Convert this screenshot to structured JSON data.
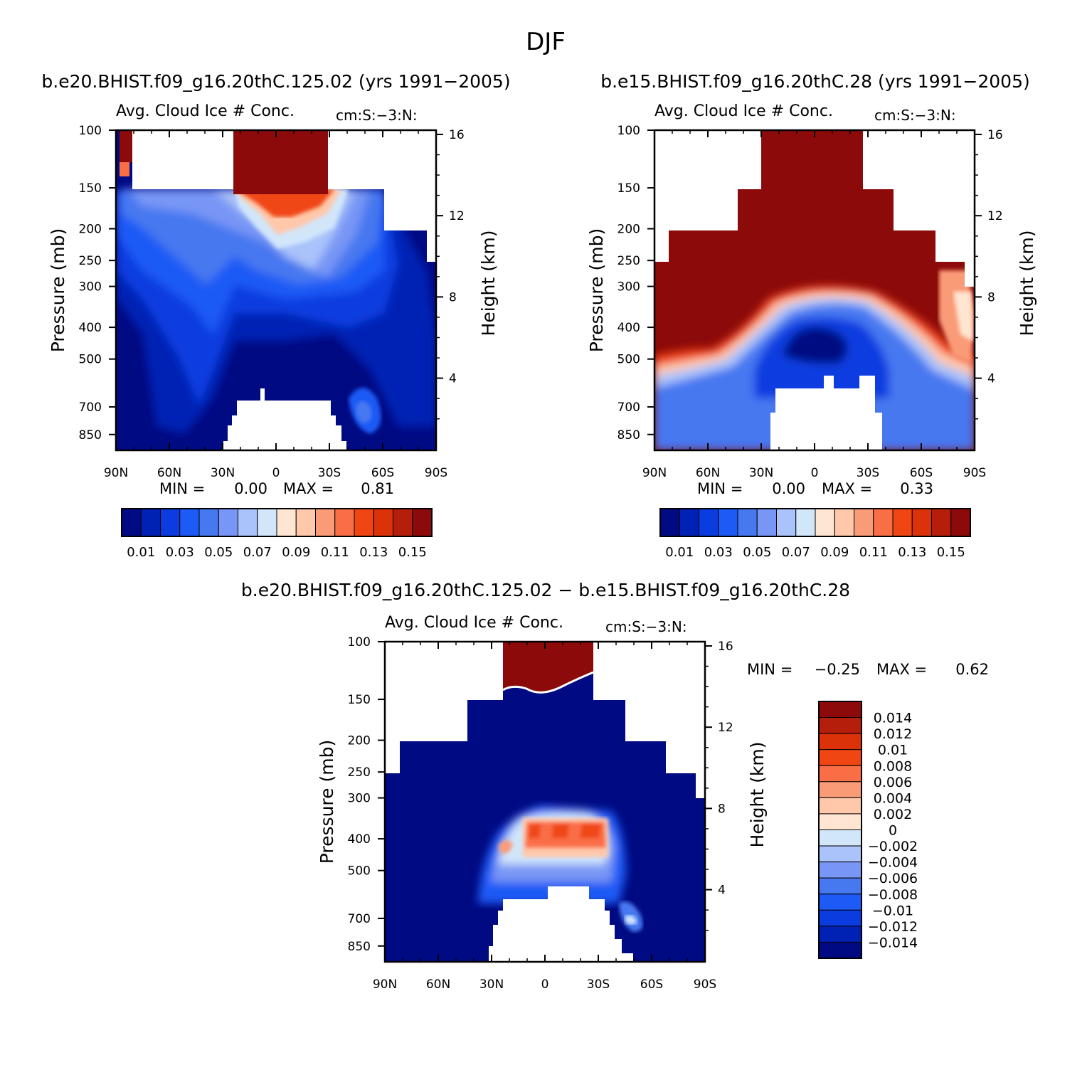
{
  "figure_title": "DJF",
  "colors": {
    "seq": [
      "#000a82",
      "#0022b4",
      "#0a3ce0",
      "#1e5af5",
      "#4678f0",
      "#7896f5",
      "#aac3fa",
      "#d2e6fa",
      "#ffe6d2",
      "#ffc8aa",
      "#fa9b78",
      "#fa6e46",
      "#f04614",
      "#dc320a",
      "#b41e0a",
      "#8c0a0a"
    ],
    "diff": [
      "#000a82",
      "#0022b4",
      "#0a3ce0",
      "#1e5af5",
      "#4678f0",
      "#7896f5",
      "#aac3fa",
      "#d2e6fa",
      "#ffe6d2",
      "#ffc8aa",
      "#fa9b78",
      "#fa6e46",
      "#f04614",
      "#dc320a",
      "#b41e0a",
      "#8c0a0a"
    ]
  },
  "chart_data": [
    {
      "type": "heatmap",
      "case_title": "b.e20.BHIST.f09_g16.20thC.125.02 (yrs 1991−2005)",
      "var_title": "Avg. Cloud Ice # Conc.",
      "units": "cm:S:−3:N:",
      "ylabel": "Pressure (mb)",
      "y2label": "Height (km)",
      "xticks": [
        "90N",
        "60N",
        "30N",
        "0",
        "30S",
        "60S",
        "90S"
      ],
      "yticks": [
        "100",
        "150",
        "200",
        "250",
        "300",
        "400",
        "500",
        "700",
        "850"
      ],
      "y2ticks": [
        "16",
        "12",
        "8",
        "4"
      ],
      "min_label": "MIN =",
      "min_value": "0.00",
      "max_label": "MAX =",
      "max_value": "0.81",
      "colorbar_labels": [
        "0.01",
        "0.03",
        "0.05",
        "0.07",
        "0.09",
        "0.11",
        "0.13",
        "0.15"
      ]
    },
    {
      "type": "heatmap",
      "case_title": "b.e15.BHIST.f09_g16.20thC.28 (yrs 1991−2005)",
      "var_title": "Avg. Cloud Ice # Conc.",
      "units": "cm:S:−3:N:",
      "ylabel": "Pressure (mb)",
      "y2label": "Height (km)",
      "xticks": [
        "90N",
        "60N",
        "30N",
        "0",
        "30S",
        "60S",
        "90S"
      ],
      "yticks": [
        "100",
        "150",
        "200",
        "250",
        "300",
        "400",
        "500",
        "700",
        "850"
      ],
      "y2ticks": [
        "16",
        "12",
        "8",
        "4"
      ],
      "min_label": "MIN =",
      "min_value": "0.00",
      "max_label": "MAX =",
      "max_value": "0.33",
      "colorbar_labels": [
        "0.01",
        "0.03",
        "0.05",
        "0.07",
        "0.09",
        "0.11",
        "0.13",
        "0.15"
      ]
    },
    {
      "type": "heatmap",
      "case_title": "b.e20.BHIST.f09_g16.20thC.125.02 − b.e15.BHIST.f09_g16.20thC.28",
      "var_title": "Avg. Cloud Ice # Conc.",
      "units": "cm:S:−3:N:",
      "ylabel": "Pressure (mb)",
      "y2label": "Height (km)",
      "xticks": [
        "90N",
        "60N",
        "30N",
        "0",
        "30S",
        "60S",
        "90S"
      ],
      "yticks": [
        "100",
        "150",
        "200",
        "250",
        "300",
        "400",
        "500",
        "700",
        "850"
      ],
      "y2ticks": [
        "16",
        "12",
        "8",
        "4"
      ],
      "min_label": "MIN =",
      "min_value": "−0.25",
      "max_label": "MAX =",
      "max_value": "0.62",
      "colorbar_labels": [
        "0.014",
        "0.012",
        "0.01",
        "0.008",
        "0.006",
        "0.004",
        "0.002",
        "0",
        "−0.002",
        "−0.004",
        "−0.006",
        "−0.008",
        "−0.01",
        "−0.012",
        "−0.014"
      ]
    }
  ]
}
